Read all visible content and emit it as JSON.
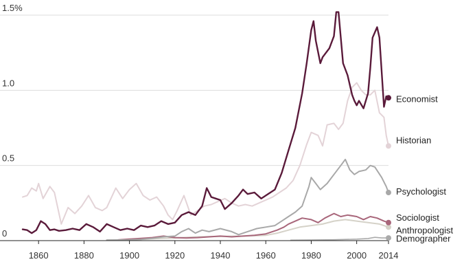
{
  "chart_data": {
    "type": "line",
    "title": "",
    "xlabel": "",
    "ylabel": "",
    "xlim": [
      1853,
      2014
    ],
    "ylim": [
      0,
      1.5
    ],
    "x_ticks": [
      {
        "value": 1860,
        "label": "1860"
      },
      {
        "value": 1880,
        "label": "1880"
      },
      {
        "value": 1900,
        "label": "1900"
      },
      {
        "value": 1920,
        "label": "1920"
      },
      {
        "value": 1940,
        "label": "1940"
      },
      {
        "value": 1960,
        "label": "1960"
      },
      {
        "value": 1980,
        "label": "1980"
      },
      {
        "value": 2000,
        "label": "2000"
      },
      {
        "value": 2014,
        "label": "2014"
      }
    ],
    "y_ticks": [
      {
        "value": 0,
        "label": "0"
      },
      {
        "value": 0.5,
        "label": "0.5"
      },
      {
        "value": 1.0,
        "label": "1.0"
      },
      {
        "value": 1.5,
        "label": "1.5%"
      }
    ],
    "grid": true,
    "series": [
      {
        "name": "Demographer",
        "label": "Demographer",
        "color": "#aaaaaa",
        "width": 1.6,
        "label_value": 0.015,
        "points": [
          [
            1971,
            0.003
          ],
          [
            1980,
            0.004
          ],
          [
            1990,
            0.006
          ],
          [
            2000,
            0.01
          ],
          [
            2005,
            0.014
          ],
          [
            2008,
            0.022
          ],
          [
            2011,
            0.018
          ],
          [
            2014,
            0.018
          ]
        ]
      },
      {
        "name": "Anthropologist",
        "label": "Anthropologist",
        "color": "#d5d2c8",
        "width": 2,
        "label_value": 0.07,
        "points": [
          [
            1890,
            0.003
          ],
          [
            1900,
            0.005
          ],
          [
            1910,
            0.012
          ],
          [
            1920,
            0.018
          ],
          [
            1930,
            0.025
          ],
          [
            1940,
            0.028
          ],
          [
            1950,
            0.03
          ],
          [
            1960,
            0.035
          ],
          [
            1965,
            0.05
          ],
          [
            1970,
            0.07
          ],
          [
            1975,
            0.09
          ],
          [
            1980,
            0.1
          ],
          [
            1985,
            0.11
          ],
          [
            1990,
            0.13
          ],
          [
            1995,
            0.14
          ],
          [
            2000,
            0.13
          ],
          [
            2005,
            0.12
          ],
          [
            2010,
            0.11
          ],
          [
            2014,
            0.09
          ]
        ]
      },
      {
        "name": "Sociologist",
        "label": "Sociologist",
        "color": "#a8667a",
        "width": 2,
        "label_value": 0.155,
        "points": [
          [
            1895,
            0.005
          ],
          [
            1900,
            0.01
          ],
          [
            1905,
            0.015
          ],
          [
            1910,
            0.02
          ],
          [
            1915,
            0.03
          ],
          [
            1920,
            0.02
          ],
          [
            1925,
            0.018
          ],
          [
            1930,
            0.02
          ],
          [
            1935,
            0.025
          ],
          [
            1940,
            0.03
          ],
          [
            1945,
            0.025
          ],
          [
            1950,
            0.03
          ],
          [
            1955,
            0.035
          ],
          [
            1960,
            0.045
          ],
          [
            1965,
            0.07
          ],
          [
            1968,
            0.09
          ],
          [
            1970,
            0.11
          ],
          [
            1973,
            0.13
          ],
          [
            1976,
            0.15
          ],
          [
            1980,
            0.14
          ],
          [
            1983,
            0.12
          ],
          [
            1986,
            0.15
          ],
          [
            1990,
            0.18
          ],
          [
            1993,
            0.16
          ],
          [
            1996,
            0.17
          ],
          [
            2000,
            0.16
          ],
          [
            2003,
            0.14
          ],
          [
            2006,
            0.16
          ],
          [
            2009,
            0.15
          ],
          [
            2012,
            0.13
          ],
          [
            2014,
            0.12
          ]
        ]
      },
      {
        "name": "Psychologist",
        "label": "Psychologist",
        "color": "#a8a8a8",
        "width": 2,
        "label_value": 0.33,
        "points": [
          [
            1890,
            0.003
          ],
          [
            1900,
            0.005
          ],
          [
            1905,
            0.008
          ],
          [
            1910,
            0.015
          ],
          [
            1915,
            0.025
          ],
          [
            1920,
            0.03
          ],
          [
            1923,
            0.06
          ],
          [
            1926,
            0.08
          ],
          [
            1929,
            0.05
          ],
          [
            1932,
            0.07
          ],
          [
            1935,
            0.06
          ],
          [
            1940,
            0.08
          ],
          [
            1945,
            0.06
          ],
          [
            1948,
            0.04
          ],
          [
            1952,
            0.06
          ],
          [
            1956,
            0.08
          ],
          [
            1960,
            0.09
          ],
          [
            1964,
            0.1
          ],
          [
            1967,
            0.13
          ],
          [
            1970,
            0.16
          ],
          [
            1973,
            0.19
          ],
          [
            1976,
            0.23
          ],
          [
            1979,
            0.36
          ],
          [
            1980,
            0.42
          ],
          [
            1982,
            0.38
          ],
          [
            1984,
            0.34
          ],
          [
            1987,
            0.38
          ],
          [
            1990,
            0.44
          ],
          [
            1993,
            0.5
          ],
          [
            1995,
            0.54
          ],
          [
            1997,
            0.47
          ],
          [
            1999,
            0.44
          ],
          [
            2001,
            0.46
          ],
          [
            2004,
            0.47
          ],
          [
            2006,
            0.5
          ],
          [
            2008,
            0.49
          ],
          [
            2011,
            0.42
          ],
          [
            2013,
            0.36
          ],
          [
            2014,
            0.32
          ]
        ]
      },
      {
        "name": "Historian",
        "label": "Historian",
        "color": "#e3d3d7",
        "width": 2,
        "label_value": 0.67,
        "points": [
          [
            1853,
            0.29
          ],
          [
            1855,
            0.3
          ],
          [
            1857,
            0.35
          ],
          [
            1859,
            0.33
          ],
          [
            1860,
            0.38
          ],
          [
            1862,
            0.28
          ],
          [
            1865,
            0.36
          ],
          [
            1867,
            0.32
          ],
          [
            1870,
            0.11
          ],
          [
            1873,
            0.22
          ],
          [
            1876,
            0.18
          ],
          [
            1879,
            0.23
          ],
          [
            1882,
            0.3
          ],
          [
            1885,
            0.22
          ],
          [
            1888,
            0.2
          ],
          [
            1890,
            0.22
          ],
          [
            1894,
            0.35
          ],
          [
            1897,
            0.28
          ],
          [
            1900,
            0.34
          ],
          [
            1903,
            0.38
          ],
          [
            1906,
            0.3
          ],
          [
            1909,
            0.27
          ],
          [
            1912,
            0.29
          ],
          [
            1915,
            0.23
          ],
          [
            1917,
            0.17
          ],
          [
            1919,
            0.14
          ],
          [
            1921,
            0.2
          ],
          [
            1924,
            0.3
          ],
          [
            1927,
            0.17
          ],
          [
            1930,
            0.2
          ],
          [
            1933,
            0.23
          ],
          [
            1936,
            0.24
          ],
          [
            1939,
            0.26
          ],
          [
            1942,
            0.28
          ],
          [
            1945,
            0.25
          ],
          [
            1948,
            0.23
          ],
          [
            1951,
            0.24
          ],
          [
            1954,
            0.23
          ],
          [
            1957,
            0.25
          ],
          [
            1960,
            0.27
          ],
          [
            1963,
            0.29
          ],
          [
            1966,
            0.32
          ],
          [
            1969,
            0.35
          ],
          [
            1972,
            0.4
          ],
          [
            1975,
            0.5
          ],
          [
            1978,
            0.64
          ],
          [
            1980,
            0.72
          ],
          [
            1983,
            0.7
          ],
          [
            1985,
            0.63
          ],
          [
            1987,
            0.77
          ],
          [
            1990,
            0.78
          ],
          [
            1992,
            0.74
          ],
          [
            1994,
            0.78
          ],
          [
            1996,
            0.93
          ],
          [
            1998,
            1.02
          ],
          [
            2000,
            1.05
          ],
          [
            2002,
            1.0
          ],
          [
            2004,
            0.97
          ],
          [
            2006,
            0.97
          ],
          [
            2008,
            1.0
          ],
          [
            2010,
            0.85
          ],
          [
            2012,
            0.82
          ],
          [
            2013,
            0.7
          ],
          [
            2014,
            0.63
          ]
        ]
      },
      {
        "name": "Economist",
        "label": "Economist",
        "color": "#5a1a3a",
        "width": 2.4,
        "label_value": 0.945,
        "points": [
          [
            1853,
            0.075
          ],
          [
            1855,
            0.07
          ],
          [
            1857,
            0.05
          ],
          [
            1859,
            0.07
          ],
          [
            1861,
            0.13
          ],
          [
            1863,
            0.11
          ],
          [
            1865,
            0.07
          ],
          [
            1867,
            0.075
          ],
          [
            1869,
            0.065
          ],
          [
            1872,
            0.07
          ],
          [
            1875,
            0.08
          ],
          [
            1878,
            0.07
          ],
          [
            1881,
            0.11
          ],
          [
            1884,
            0.09
          ],
          [
            1887,
            0.06
          ],
          [
            1890,
            0.11
          ],
          [
            1893,
            0.09
          ],
          [
            1896,
            0.07
          ],
          [
            1899,
            0.08
          ],
          [
            1902,
            0.07
          ],
          [
            1905,
            0.1
          ],
          [
            1908,
            0.09
          ],
          [
            1911,
            0.1
          ],
          [
            1914,
            0.13
          ],
          [
            1917,
            0.11
          ],
          [
            1920,
            0.12
          ],
          [
            1923,
            0.17
          ],
          [
            1926,
            0.19
          ],
          [
            1929,
            0.17
          ],
          [
            1932,
            0.23
          ],
          [
            1934,
            0.35
          ],
          [
            1936,
            0.29
          ],
          [
            1938,
            0.28
          ],
          [
            1940,
            0.27
          ],
          [
            1942,
            0.21
          ],
          [
            1945,
            0.25
          ],
          [
            1948,
            0.3
          ],
          [
            1950,
            0.34
          ],
          [
            1952,
            0.31
          ],
          [
            1955,
            0.32
          ],
          [
            1958,
            0.28
          ],
          [
            1961,
            0.31
          ],
          [
            1964,
            0.34
          ],
          [
            1967,
            0.45
          ],
          [
            1970,
            0.6
          ],
          [
            1973,
            0.75
          ],
          [
            1976,
            0.98
          ],
          [
            1978,
            1.18
          ],
          [
            1980,
            1.4
          ],
          [
            1981,
            1.46
          ],
          [
            1982,
            1.33
          ],
          [
            1984,
            1.18
          ],
          [
            1985,
            1.22
          ],
          [
            1988,
            1.28
          ],
          [
            1990,
            1.36
          ],
          [
            1991,
            1.52
          ],
          [
            1992,
            1.52
          ],
          [
            1994,
            1.18
          ],
          [
            1996,
            1.1
          ],
          [
            1998,
            0.97
          ],
          [
            1999,
            0.93
          ],
          [
            2000,
            0.9
          ],
          [
            2001,
            0.93
          ],
          [
            2003,
            0.88
          ],
          [
            2005,
            0.98
          ],
          [
            2006,
            1.15
          ],
          [
            2007,
            1.35
          ],
          [
            2009,
            1.42
          ],
          [
            2010,
            1.35
          ],
          [
            2011,
            1.12
          ],
          [
            2012,
            0.89
          ],
          [
            2013,
            0.96
          ],
          [
            2014,
            0.95
          ]
        ]
      }
    ]
  }
}
